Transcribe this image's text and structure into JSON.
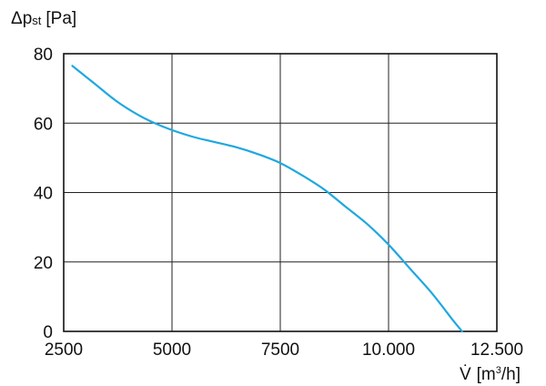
{
  "chart_data": {
    "type": "line",
    "ylabel": {
      "symbol": "Δp",
      "sub": "st",
      "unit": "[Pa]"
    },
    "xlabel": {
      "symbol": "V̇",
      "unit_prefix": "[m",
      "unit_sup": "3",
      "unit_suffix": "/h]"
    },
    "xlim": [
      2500,
      12500
    ],
    "ylim": [
      0,
      80
    ],
    "xticks": [
      {
        "value": 2500,
        "label": "2500"
      },
      {
        "value": 5000,
        "label": "5000"
      },
      {
        "value": 7500,
        "label": "7500"
      },
      {
        "value": 10000,
        "label": "10.000"
      },
      {
        "value": 12500,
        "label": "12.500"
      }
    ],
    "yticks": [
      {
        "value": 0,
        "label": "0"
      },
      {
        "value": 20,
        "label": "20"
      },
      {
        "value": 40,
        "label": "40"
      },
      {
        "value": 60,
        "label": "60"
      },
      {
        "value": 80,
        "label": "80"
      }
    ],
    "grid": true,
    "series": [
      {
        "color": "#1fa8e0",
        "x": [
          2700,
          3200,
          3700,
          4200,
          4600,
          5000,
          5500,
          6000,
          6500,
          7000,
          7500,
          8000,
          8500,
          9000,
          9500,
          10000,
          10500,
          11000,
          11500,
          11700
        ],
        "y": [
          76.5,
          71.5,
          66.5,
          62.5,
          60,
          58,
          56,
          54.5,
          53,
          51,
          48.5,
          45,
          41,
          36,
          31,
          25,
          18,
          11,
          3,
          0
        ]
      }
    ]
  }
}
